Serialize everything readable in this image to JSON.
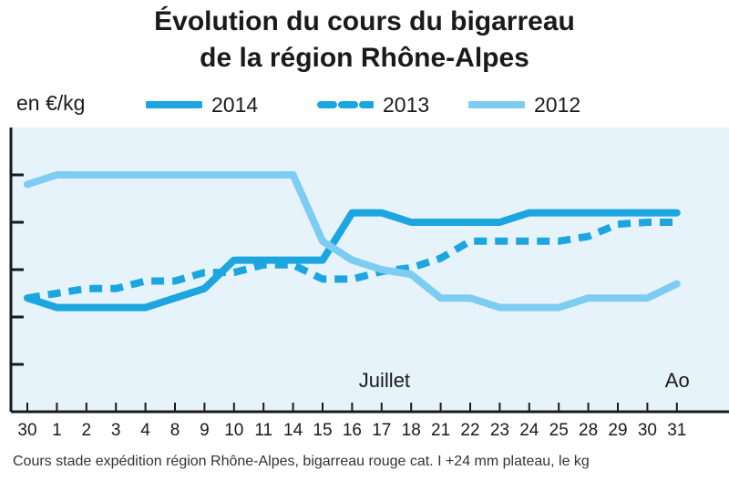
{
  "chart_data": {
    "type": "line",
    "title_line1": "Évolution du cours du bigarreau",
    "title_line2": "de la région Rhône-Alpes",
    "ylabel": "en €/kg",
    "categories": [
      "30",
      "1",
      "2",
      "3",
      "4",
      "8",
      "9",
      "10",
      "11",
      "14",
      "15",
      "16",
      "17",
      "18",
      "21",
      "22",
      "23",
      "24",
      "25",
      "28",
      "29",
      "30",
      "31"
    ],
    "annotations": [
      {
        "text": "Juillet",
        "category_index": 12
      },
      {
        "text": "Ao",
        "category_index": 22
      }
    ],
    "footnote": "Cours stade expédition région Rhône-Alpes, bigarreau rouge cat. I +24 mm plateau, le kg",
    "grid": false,
    "series": [
      {
        "name": "2014",
        "color": "#1ba6e0",
        "dash": "solid",
        "width": 8,
        "values": [
          1.2,
          1.1,
          1.1,
          1.1,
          1.1,
          1.2,
          1.3,
          1.6,
          1.6,
          1.6,
          1.6,
          2.1,
          2.1,
          2.0,
          2.0,
          2.0,
          2.0,
          2.1,
          2.1,
          2.1,
          2.1,
          2.1,
          2.1
        ]
      },
      {
        "name": "2013",
        "color": "#1ba6e0",
        "dash": "dashed",
        "width": 8,
        "values": [
          1.2,
          1.25,
          1.3,
          1.3,
          1.38,
          1.38,
          1.47,
          1.47,
          1.55,
          1.55,
          1.4,
          1.4,
          1.48,
          1.52,
          1.62,
          1.8,
          1.8,
          1.8,
          1.8,
          1.85,
          1.98,
          2.0,
          2.0
        ]
      },
      {
        "name": "2012",
        "color": "#7ccdf1",
        "dash": "solid",
        "width": 8,
        "values": [
          2.4,
          2.5,
          2.5,
          2.5,
          2.5,
          2.5,
          2.5,
          2.5,
          2.5,
          2.5,
          1.8,
          1.6,
          1.5,
          1.45,
          1.2,
          1.2,
          1.1,
          1.1,
          1.1,
          1.2,
          1.2,
          1.2,
          1.35
        ]
      }
    ],
    "ylim": [
      0.0,
      3.0
    ],
    "xlabel": ""
  }
}
